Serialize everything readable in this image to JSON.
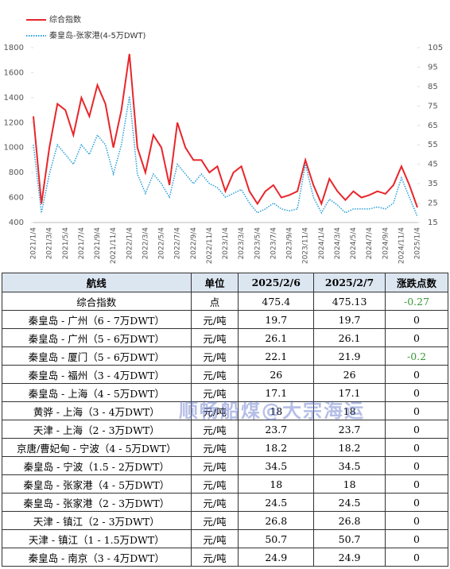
{
  "chart_data": {
    "type": "line",
    "categories": [
      "2021/1/4",
      null,
      "2021/3/4",
      null,
      "2021/5/4",
      null,
      "2021/7/4",
      null,
      "2021/9/4",
      null,
      "2021/11/4",
      null,
      "2022/1/4",
      null,
      "2022/3/4",
      null,
      "2022/5/4",
      null,
      "2022/7/4",
      null,
      "2022/9/4",
      null,
      "2022/11/4",
      null,
      "2023/1/4",
      null,
      "2023/3/4",
      null,
      "2023/5/4",
      null,
      "2023/7/4",
      null,
      "2023/9/4",
      null,
      "2023/11/4",
      null,
      "2024/1/4",
      null,
      "2024/3/4",
      null,
      "2024/5/4",
      null,
      "2024/7/4",
      null,
      "2024/9/4",
      null,
      "2024/11/4",
      null,
      "2025/1/4"
    ],
    "series": [
      {
        "name": "综合指数",
        "color": "#e8262b",
        "style": "solid",
        "values": [
          1250,
          550,
          1000,
          1350,
          1300,
          1100,
          1400,
          1250,
          1500,
          1350,
          1000,
          1300,
          1750,
          1000,
          800,
          1100,
          1000,
          700,
          1200,
          1000,
          900,
          900,
          800,
          850,
          650,
          800,
          850,
          650,
          550,
          650,
          700,
          600,
          620,
          650,
          900,
          700,
          550,
          750,
          650,
          580,
          650,
          600,
          620,
          650,
          630,
          700,
          850,
          700,
          520
        ]
      },
      {
        "name": "秦皇岛-张家港(4-5万DWT)",
        "color": "#2aa0d8",
        "style": "dotted",
        "axis": "y2",
        "values": [
          55,
          20,
          40,
          55,
          50,
          45,
          55,
          50,
          60,
          55,
          40,
          55,
          80,
          40,
          30,
          40,
          35,
          28,
          45,
          40,
          35,
          40,
          35,
          33,
          28,
          30,
          32,
          25,
          20,
          22,
          25,
          22,
          21,
          22,
          45,
          28,
          20,
          27,
          24,
          20,
          22,
          22,
          22,
          23,
          22,
          25,
          38,
          28,
          18
        ]
      }
    ],
    "ylim": [
      400,
      1800
    ],
    "yticks": [
      400,
      600,
      800,
      1000,
      1200,
      1400,
      1600,
      1800
    ],
    "y2lim": [
      15,
      105
    ],
    "y2ticks": [
      15,
      25,
      35,
      45,
      55,
      65,
      75,
      85,
      95,
      105
    ],
    "legend": "top-left"
  },
  "table": {
    "header": [
      "航线",
      "单位",
      "2025/2/6",
      "2025/2/7",
      "涨跌点数"
    ],
    "rows": [
      [
        "综合指数",
        "点",
        "475.4",
        "475.13",
        "-0.27"
      ],
      [
        "秦皇岛 - 广州（6 - 7万DWT）",
        "元/吨",
        "19.7",
        "19.7",
        "0"
      ],
      [
        "秦皇岛 - 广州（5 - 6万DWT）",
        "元/吨",
        "26.1",
        "26.1",
        "0"
      ],
      [
        "秦皇岛 - 厦门（5 - 6万DWT）",
        "元/吨",
        "22.1",
        "21.9",
        "-0.2"
      ],
      [
        "秦皇岛 - 福州（3 - 4万DWT）",
        "元/吨",
        "26",
        "26",
        "0"
      ],
      [
        "秦皇岛 - 上海（4 - 5万DWT）",
        "元/吨",
        "17.1",
        "17.1",
        "0"
      ],
      [
        "黄骅 - 上海（3 - 4万DWT）",
        "元/吨",
        "18",
        "18",
        "0"
      ],
      [
        "天津 - 上海（2 - 3万DWT）",
        "元/吨",
        "23.7",
        "23.7",
        "0"
      ],
      [
        "京唐/曹妃甸 - 宁波（4 - 5万DWT）",
        "元/吨",
        "18.2",
        "18.2",
        "0"
      ],
      [
        "秦皇岛 - 宁波（1.5 - 2万DWT）",
        "元/吨",
        "34.5",
        "34.5",
        "0"
      ],
      [
        "秦皇岛 - 张家港（4 - 5万DWT）",
        "元/吨",
        "18",
        "18",
        "0"
      ],
      [
        "秦皇岛 - 张家港（2 - 3万DWT）",
        "元/吨",
        "24.5",
        "24.5",
        "0"
      ],
      [
        "天津 - 镇江（2 - 3万DWT）",
        "元/吨",
        "26.8",
        "26.8",
        "0"
      ],
      [
        "天津 - 镇江（1 - 1.5万DWT）",
        "元/吨",
        "50.7",
        "50.7",
        "0"
      ],
      [
        "秦皇岛 - 南京（3 - 4万DWT）",
        "元/吨",
        "24.9",
        "24.9",
        "0"
      ]
    ]
  },
  "watermark": "顺畅船煤@大宗海运"
}
